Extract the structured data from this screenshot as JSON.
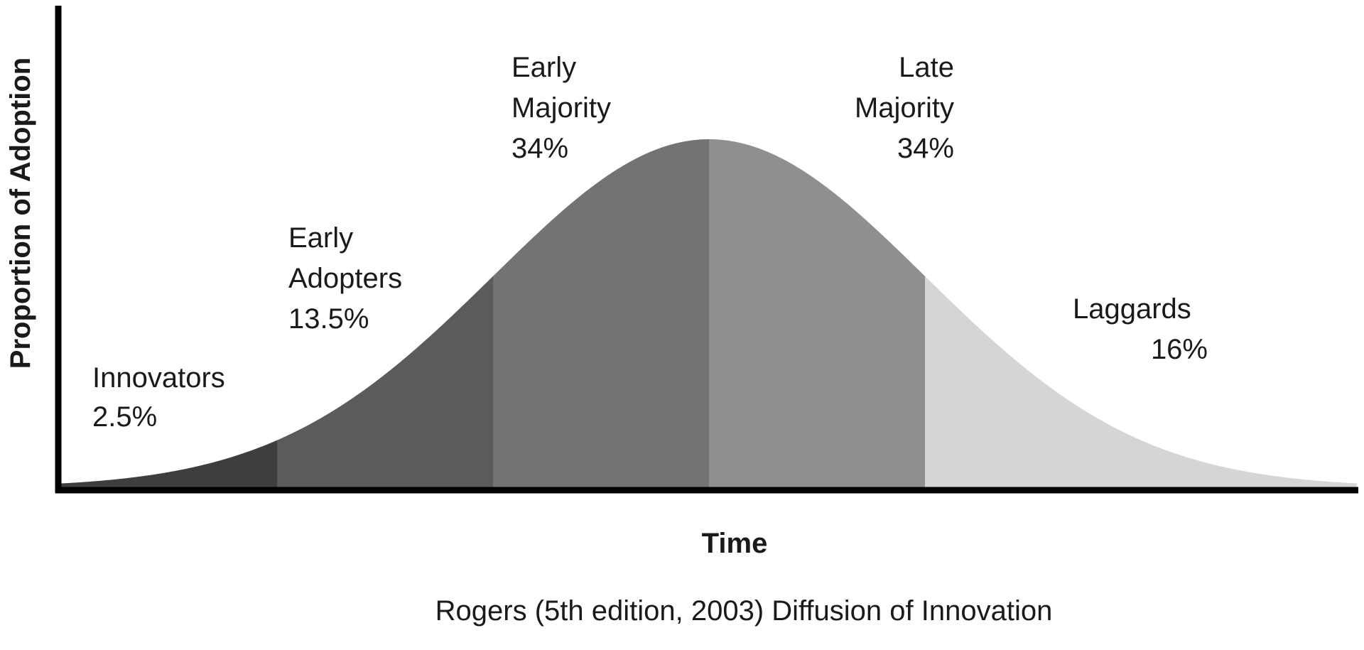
{
  "chart_data": {
    "type": "area",
    "xlabel": "Time",
    "ylabel": "Proportion of Adoption",
    "caption": "Rogers (5th edition, 2003) Diffusion of Innovation",
    "distribution": "normal",
    "x_range_sd": [
      -3.0,
      3.0
    ],
    "grid": false,
    "ticks": false,
    "series": [
      {
        "name": "Innovators",
        "value_pct": "2.5%",
        "lines": [
          "Innovators"
        ],
        "from_sd": -3.0,
        "to_sd": -2.0,
        "color": "#3e3e3e"
      },
      {
        "name": "Early Adopters",
        "value_pct": "13.5%",
        "lines": [
          "Early",
          "Adopters"
        ],
        "from_sd": -2.0,
        "to_sd": -1.0,
        "color": "#5b5b5b"
      },
      {
        "name": "Early Majority",
        "value_pct": "34%",
        "lines": [
          "Early",
          "Majority"
        ],
        "from_sd": -1.0,
        "to_sd": 0.0,
        "color": "#737373"
      },
      {
        "name": "Late Majority",
        "value_pct": "34%",
        "lines": [
          "Late",
          "Majority"
        ],
        "from_sd": 0.0,
        "to_sd": 1.0,
        "color": "#8f8f8f"
      },
      {
        "name": "Laggards",
        "value_pct": "16%",
        "lines": [
          "Laggards"
        ],
        "from_sd": 1.0,
        "to_sd": 3.0,
        "color": "#d5d5d5"
      }
    ]
  }
}
